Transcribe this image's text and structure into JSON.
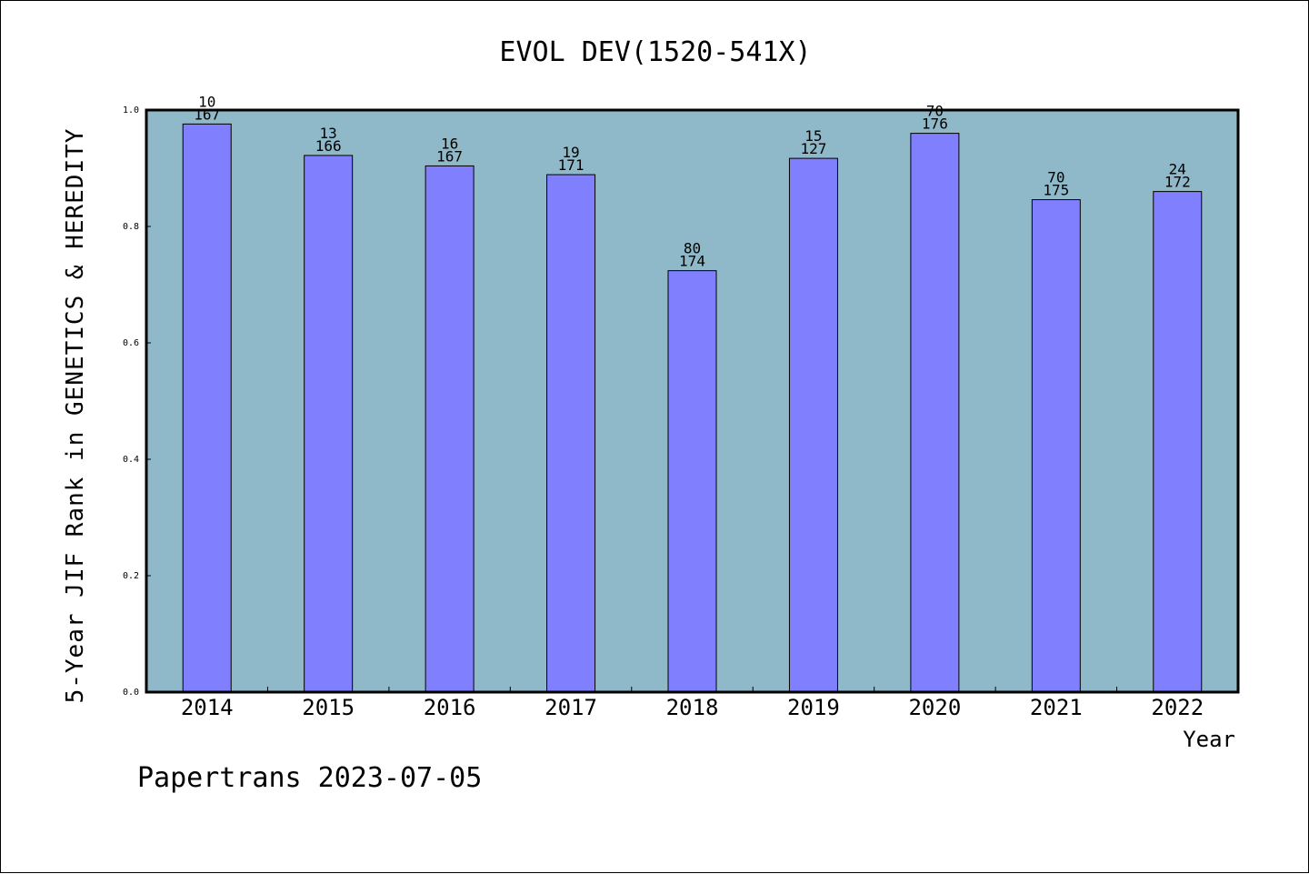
{
  "chart_data": {
    "type": "bar",
    "title": "EVOL DEV(1520-541X)",
    "xlabel": "Year",
    "ylabel": "5-Year JIF Rank in GENETICS & HEREDITY",
    "categories": [
      "2014",
      "2015",
      "2016",
      "2017",
      "2018",
      "2019",
      "2020",
      "2021",
      "2022"
    ],
    "values": [
      0.976,
      0.922,
      0.904,
      0.889,
      0.724,
      0.917,
      0.96,
      0.846,
      0.86
    ],
    "rank_labels": [
      "10",
      "13",
      "16",
      "19",
      "80",
      "15",
      "70",
      "70",
      "24"
    ],
    "total_labels": [
      "167",
      "166",
      "167",
      "171",
      "174",
      "127",
      "176",
      "175",
      "172"
    ],
    "ylim": [
      0,
      1.0
    ],
    "yticks": [
      "0.0",
      "0.2",
      "0.4",
      "0.6",
      "0.8",
      "1.0"
    ],
    "grid": false,
    "colors": {
      "plot_background": "#8fb8c8",
      "bar_fill": "#8080ff",
      "bar_stroke": "#000000"
    }
  },
  "footer": "Papertrans 2023-07-05"
}
